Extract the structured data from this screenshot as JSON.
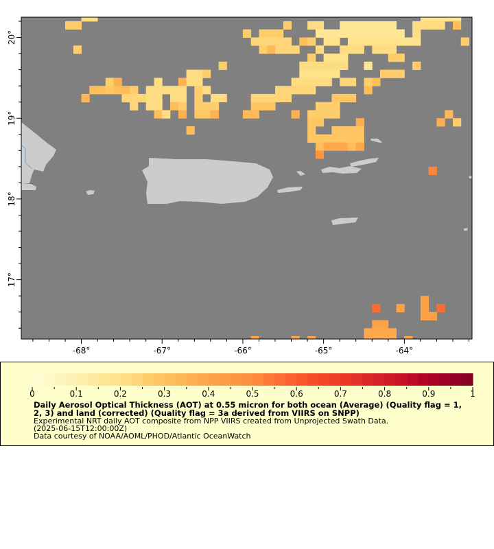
{
  "map": {
    "ocean_color": "#808080",
    "land_color": "#cccccc",
    "river_color": "#6ea6d8",
    "lon_ticks": [
      {
        "value": -68,
        "label": "-68°"
      },
      {
        "value": -67,
        "label": "-67°"
      },
      {
        "value": -66,
        "label": "-66°"
      },
      {
        "value": -65,
        "label": "-65°"
      },
      {
        "value": -64,
        "label": "-64°"
      }
    ],
    "lat_ticks": [
      {
        "value": 20,
        "label": "20°"
      },
      {
        "value": 19,
        "label": "19°"
      },
      {
        "value": 18,
        "label": "18°"
      },
      {
        "value": 17,
        "label": "17°"
      }
    ],
    "lon_range": [
      -68.75,
      -63.17
    ],
    "lat_range": [
      16.3,
      20.25
    ],
    "cell_size_deg": 0.1,
    "aot_rows": [
      {
        "lat": 20.3,
        "runs": [
          [
            -68.0,
            2,
            0.2
          ],
          [
            -63.8,
            5,
            0.18
          ]
        ]
      },
      {
        "lat": 20.2,
        "runs": [
          [
            -68.2,
            2,
            0.25
          ],
          [
            -65.5,
            1,
            0.27
          ],
          [
            -65.2,
            2,
            0.22
          ],
          [
            -64.8,
            7,
            0.17
          ],
          [
            -63.9,
            4,
            0.22
          ],
          [
            -63.4,
            1,
            0.3
          ]
        ]
      },
      {
        "lat": 20.1,
        "runs": [
          [
            -66.0,
            1,
            0.25
          ],
          [
            -65.8,
            3,
            0.27
          ],
          [
            -65.1,
            11,
            0.17
          ],
          [
            -63.9,
            1,
            0.22
          ]
        ]
      },
      {
        "lat": 20.0,
        "runs": [
          [
            -65.9,
            5,
            0.24
          ],
          [
            -65.3,
            1,
            0.3
          ],
          [
            -65.2,
            1,
            0.25
          ],
          [
            -65.0,
            2,
            0.18
          ],
          [
            -64.7,
            9,
            0.18
          ],
          [
            -63.3,
            1,
            0.27
          ]
        ]
      },
      {
        "lat": 19.9,
        "runs": [
          [
            -68.1,
            1,
            0.27
          ],
          [
            -65.8,
            1,
            0.25
          ],
          [
            -65.7,
            1,
            0.33
          ],
          [
            -65.6,
            3,
            0.24
          ],
          [
            -65.1,
            1,
            0.22
          ],
          [
            -64.8,
            3,
            0.2
          ],
          [
            -64.4,
            3,
            0.22
          ]
        ]
      },
      {
        "lat": 19.8,
        "runs": [
          [
            -65.2,
            1,
            0.25
          ],
          [
            -65.0,
            3,
            0.18
          ],
          [
            -64.2,
            2,
            0.26
          ]
        ]
      },
      {
        "lat": 19.7,
        "runs": [
          [
            -66.3,
            1,
            0.25
          ],
          [
            -65.3,
            6,
            0.2
          ],
          [
            -64.5,
            1,
            0.15
          ],
          [
            -63.9,
            1,
            0.26
          ]
        ]
      },
      {
        "lat": 19.6,
        "runs": [
          [
            -66.7,
            2,
            0.2
          ],
          [
            -66.5,
            1,
            0.25
          ],
          [
            -65.3,
            5,
            0.19
          ],
          [
            -64.3,
            3,
            0.27
          ]
        ]
      },
      {
        "lat": 19.5,
        "runs": [
          [
            -67.7,
            1,
            0.27
          ],
          [
            -67.6,
            1,
            0.37
          ],
          [
            -67.1,
            1,
            0.22
          ],
          [
            -66.8,
            1,
            0.35
          ],
          [
            -66.7,
            2,
            0.2
          ],
          [
            -65.4,
            5,
            0.2
          ],
          [
            -64.8,
            2,
            0.24
          ],
          [
            -64.5,
            1,
            0.27
          ],
          [
            -64.4,
            1,
            0.32
          ]
        ]
      },
      {
        "lat": 19.4,
        "runs": [
          [
            -67.9,
            2,
            0.3
          ],
          [
            -67.7,
            1,
            0.28
          ],
          [
            -67.6,
            1,
            0.3
          ],
          [
            -67.5,
            1,
            0.33
          ],
          [
            -67.4,
            1,
            0.27
          ],
          [
            -67.2,
            5,
            0.2
          ],
          [
            -66.6,
            1,
            0.27
          ],
          [
            -66.5,
            1,
            0.22
          ],
          [
            -65.6,
            5,
            0.23
          ],
          [
            -64.5,
            1,
            0.32
          ]
        ]
      },
      {
        "lat": 19.3,
        "runs": [
          [
            -68.0,
            1,
            0.33
          ],
          [
            -67.5,
            3,
            0.24
          ],
          [
            -67.2,
            2,
            0.2
          ],
          [
            -66.9,
            2,
            0.22
          ],
          [
            -66.6,
            1,
            0.27
          ],
          [
            -66.4,
            2,
            0.22
          ],
          [
            -65.9,
            5,
            0.24
          ],
          [
            -64.9,
            3,
            0.28
          ]
        ]
      },
      {
        "lat": 19.2,
        "runs": [
          [
            -67.4,
            1,
            0.23
          ],
          [
            -67.2,
            2,
            0.2
          ],
          [
            -66.9,
            1,
            0.31
          ],
          [
            -66.8,
            1,
            0.27
          ],
          [
            -66.6,
            3,
            0.27
          ],
          [
            -65.9,
            3,
            0.28
          ],
          [
            -65.1,
            3,
            0.26
          ],
          [
            -64.9,
            1,
            0.25
          ]
        ]
      },
      {
        "lat": 19.1,
        "runs": [
          [
            -67.1,
            1,
            0.3
          ],
          [
            -67.0,
            1,
            0.22
          ],
          [
            -66.8,
            1,
            0.35
          ],
          [
            -66.6,
            2,
            0.28
          ],
          [
            -66.4,
            1,
            0.37
          ],
          [
            -66.0,
            2,
            0.33
          ],
          [
            -65.4,
            1,
            0.36
          ],
          [
            -65.2,
            4,
            0.27
          ],
          [
            -63.5,
            1,
            0.34
          ]
        ]
      },
      {
        "lat": 19.0,
        "runs": [
          [
            -65.2,
            2,
            0.28
          ],
          [
            -64.6,
            1,
            0.37
          ],
          [
            -63.6,
            1,
            0.37
          ],
          [
            -63.4,
            1,
            0.27
          ]
        ]
      },
      {
        "lat": 18.9,
        "runs": [
          [
            -66.7,
            1,
            0.32
          ],
          [
            -65.2,
            1,
            0.28
          ],
          [
            -64.9,
            4,
            0.29
          ]
        ]
      },
      {
        "lat": 18.8,
        "runs": [
          [
            -65.2,
            7,
            0.29
          ]
        ]
      },
      {
        "lat": 18.7,
        "runs": [
          [
            -65.1,
            1,
            0.3
          ],
          [
            -65.0,
            3,
            0.38
          ],
          [
            -64.7,
            1,
            0.31
          ],
          [
            -64.6,
            1,
            0.39
          ]
        ]
      },
      {
        "lat": 18.6,
        "runs": [
          [
            -65.1,
            1,
            0.45
          ]
        ]
      },
      {
        "lat": 18.4,
        "runs": [
          [
            -63.7,
            1,
            0.5
          ]
        ]
      },
      {
        "lat": 16.8,
        "runs": [
          [
            -63.8,
            1,
            0.4
          ]
        ]
      },
      {
        "lat": 16.7,
        "runs": [
          [
            -64.4,
            1,
            0.55
          ],
          [
            -64.1,
            1,
            0.42
          ],
          [
            -63.8,
            1,
            0.4
          ],
          [
            -63.6,
            1,
            0.55
          ]
        ]
      },
      {
        "lat": 16.6,
        "runs": [
          [
            -63.8,
            2,
            0.4
          ]
        ]
      },
      {
        "lat": 16.5,
        "runs": [
          [
            -64.4,
            2,
            0.41
          ]
        ]
      },
      {
        "lat": 16.4,
        "runs": [
          [
            -64.5,
            4,
            0.38
          ]
        ]
      },
      {
        "lat": 16.3,
        "runs": [
          [
            -65.9,
            1,
            0.38
          ],
          [
            -65.4,
            1,
            0.38
          ],
          [
            -65.2,
            1,
            0.38
          ],
          [
            -64.5,
            4,
            0.38
          ],
          [
            -64.0,
            1,
            0.38
          ]
        ]
      }
    ]
  },
  "legend": {
    "colorbar": {
      "min": 0,
      "max": 1,
      "steps": 40,
      "stops": [
        "#fffdd8",
        "#feefb0",
        "#fee087",
        "#fec35e",
        "#fda549",
        "#fd8d3c",
        "#fc5a2d",
        "#ec3a26",
        "#d11d28",
        "#b00026",
        "#800026"
      ],
      "tick_labels": [
        "0",
        "0.1",
        "0.2",
        "0.3",
        "0.4",
        "0.5",
        "0.6",
        "0.7",
        "0.8",
        "0.9",
        "1"
      ]
    },
    "title_line1": "Daily Aerosol Optical Thickness (AOT) at 0.55 micron for both ocean (Average) (Quality flag = 1,",
    "title_line2": "2, 3) and land (corrected) (Quality flag = 3a derived from VIIRS on SNPP)",
    "subtitle": "Experimental NRT daily AOT composite from NPP VIIRS created from Unprojected Swath Data.",
    "time": "(2025-06-15T12:00:00Z)",
    "credit": "Data courtesy of NOAA/AOML/PHOD/Atlantic OceanWatch"
  }
}
